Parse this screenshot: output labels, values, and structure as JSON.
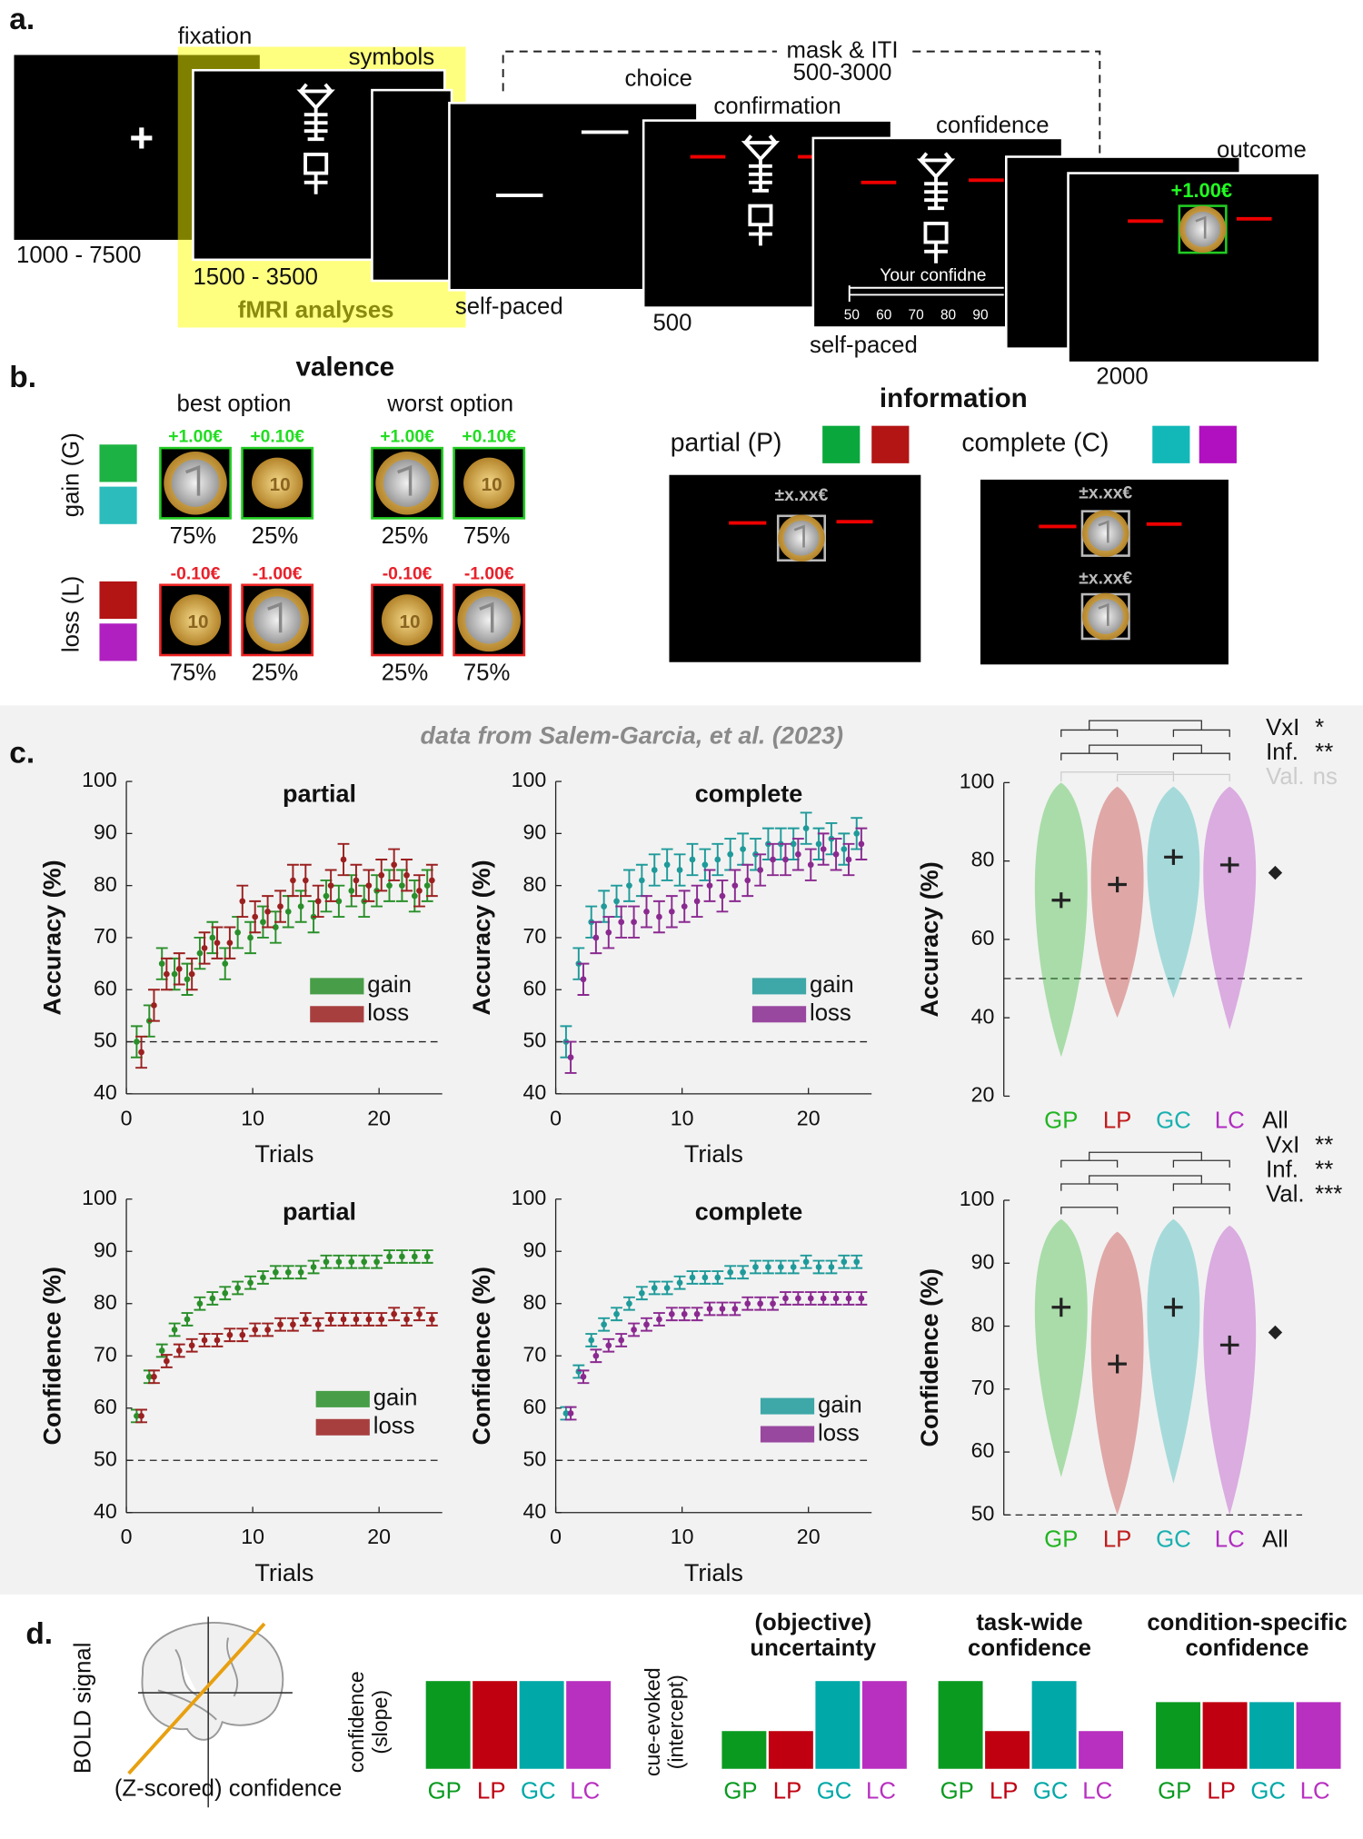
{
  "panel_a": {
    "label": "a.",
    "fixation": "fixation",
    "symbols": "symbols",
    "mask": "mask & ITI",
    "mask_time": "500-3000",
    "choice": "choice",
    "confirmation": "confirmation",
    "confidence": "confidence",
    "outcome": "outcome",
    "fixation_time": "1000 - 7500",
    "symbols_time": "1500 - 3500",
    "fmri": "fMRI analyses",
    "choice_time": "self-paced",
    "confirmation_time": "500",
    "confidence_time": "self-paced",
    "outcome_time": "2000",
    "outcome_value": "+1.00€",
    "scale_prompt": "Your confidne",
    "scale_ticks": [
      50,
      60,
      70,
      80,
      90
    ]
  },
  "panel_b": {
    "label": "b.",
    "valence": "valence",
    "best": "best option",
    "worst": "worst option",
    "gain": "gain (G)",
    "loss": "loss (L)",
    "coins": [
      {
        "label": "+1.00€",
        "prob": "75%"
      },
      {
        "label": "+0.10€",
        "prob": "25%"
      },
      {
        "label": "+1.00€",
        "prob": "25%"
      },
      {
        "label": "+0.10€",
        "prob": "75%"
      },
      {
        "label": "-0.10€",
        "prob": "75%"
      },
      {
        "label": "-1.00€",
        "prob": "25%"
      },
      {
        "label": "-0.10€",
        "prob": "25%"
      },
      {
        "label": "-1.00€",
        "prob": "75%"
      }
    ],
    "information": "information",
    "partial": "partial (P)",
    "complete": "complete (C)",
    "unknown": "±x.xx€"
  },
  "panel_c": {
    "label": "c.",
    "source": "data from Salem-Garcia, et al. (2023)"
  },
  "chart_data": [
    {
      "type": "line",
      "title": "partial",
      "xlabel": "Trials",
      "ylabel": "Accuracy (%)",
      "xlim": [
        0,
        25
      ],
      "xticks": [
        0,
        10,
        20
      ],
      "ylim": [
        40,
        100
      ],
      "yticks": [
        40,
        50,
        60,
        70,
        80,
        90,
        100
      ],
      "hline": 50,
      "x": [
        1,
        2,
        3,
        4,
        5,
        6,
        7,
        8,
        9,
        10,
        11,
        12,
        13,
        14,
        15,
        16,
        17,
        18,
        19,
        20,
        21,
        22,
        23,
        24
      ],
      "series": [
        {
          "name": "gain",
          "color": "#2a8f2a",
          "values": [
            50,
            54,
            65,
            63,
            62,
            67,
            70,
            65,
            71,
            70,
            73,
            72,
            75,
            76,
            74,
            78,
            77,
            79,
            77,
            79,
            80,
            80,
            78,
            80
          ],
          "errors": [
            3,
            3,
            3,
            3,
            3,
            3,
            3,
            3,
            3,
            3,
            3,
            3,
            3,
            3,
            3,
            3,
            3,
            3,
            3,
            3,
            3,
            3,
            3,
            3
          ]
        },
        {
          "name": "loss",
          "color": "#9b2020",
          "values": [
            48,
            57,
            63,
            64,
            63,
            68,
            69,
            69,
            77,
            74,
            75,
            76,
            81,
            81,
            77,
            80,
            85,
            81,
            80,
            82,
            84,
            82,
            79,
            81
          ],
          "errors": [
            3,
            3,
            3,
            3,
            3,
            3,
            3,
            3,
            3,
            3,
            3,
            3,
            3,
            3,
            3,
            3,
            3,
            3,
            3,
            3,
            3,
            3,
            3,
            3
          ]
        }
      ]
    },
    {
      "type": "line",
      "title": "complete",
      "xlabel": "Trials",
      "ylabel": "Accuracy (%)",
      "xlim": [
        0,
        25
      ],
      "xticks": [
        0,
        10,
        20
      ],
      "ylim": [
        40,
        100
      ],
      "yticks": [
        40,
        50,
        60,
        70,
        80,
        90,
        100
      ],
      "hline": 50,
      "x": [
        1,
        2,
        3,
        4,
        5,
        6,
        7,
        8,
        9,
        10,
        11,
        12,
        13,
        14,
        15,
        16,
        17,
        18,
        19,
        20,
        21,
        22,
        23,
        24
      ],
      "series": [
        {
          "name": "gain",
          "color": "#1f9a9a",
          "values": [
            50,
            65,
            73,
            76,
            77,
            80,
            81,
            83,
            84,
            83,
            85,
            84,
            85,
            86,
            87,
            86,
            88,
            88,
            88,
            91,
            88,
            89,
            87,
            90
          ],
          "errors": [
            3,
            3,
            3,
            3,
            3,
            3,
            3,
            3,
            3,
            3,
            3,
            3,
            3,
            3,
            3,
            3,
            3,
            3,
            3,
            3,
            3,
            3,
            3,
            3
          ]
        },
        {
          "name": "loss",
          "color": "#8a2a90",
          "values": [
            47,
            62,
            70,
            71,
            73,
            73,
            75,
            74,
            75,
            76,
            77,
            80,
            78,
            80,
            81,
            83,
            85,
            85,
            86,
            84,
            87,
            86,
            85,
            88
          ],
          "errors": [
            3,
            3,
            3,
            3,
            3,
            3,
            3,
            3,
            3,
            3,
            3,
            3,
            3,
            3,
            3,
            3,
            3,
            3,
            3,
            3,
            3,
            3,
            3,
            3
          ]
        }
      ]
    },
    {
      "type": "violin",
      "ylabel": "Accuracy (%)",
      "ylim": [
        20,
        100
      ],
      "yticks": [
        20,
        40,
        60,
        80,
        100
      ],
      "hline": 50,
      "categories": [
        "GP",
        "LP",
        "GC",
        "LC",
        "All"
      ],
      "colors": [
        "#22b422",
        "#c01c1c",
        "#1ab0b0",
        "#b02cc0",
        "#111111"
      ],
      "values": [
        70,
        74,
        81,
        79,
        77
      ],
      "errors": [
        2,
        2,
        2,
        2,
        1
      ],
      "min": [
        30,
        40,
        45,
        37,
        null
      ],
      "max": [
        100,
        99,
        99,
        99,
        null
      ],
      "tests": [
        {
          "name": "VxI",
          "result": "*"
        },
        {
          "name": "Inf.",
          "result": "**"
        },
        {
          "name": "Val.",
          "result": "ns"
        }
      ]
    },
    {
      "type": "line",
      "title": "partial",
      "xlabel": "Trials",
      "ylabel": "Confidence (%)",
      "xlim": [
        0,
        25
      ],
      "xticks": [
        0,
        10,
        20
      ],
      "ylim": [
        40,
        100
      ],
      "yticks": [
        40,
        50,
        60,
        70,
        80,
        90,
        100
      ],
      "hline": 50,
      "x": [
        1,
        2,
        3,
        4,
        5,
        6,
        7,
        8,
        9,
        10,
        11,
        12,
        13,
        14,
        15,
        16,
        17,
        18,
        19,
        20,
        21,
        22,
        23,
        24
      ],
      "series": [
        {
          "name": "gain",
          "color": "#2a8f2a",
          "values": [
            58.5,
            66,
            71,
            75,
            77,
            80,
            81,
            82,
            83,
            84,
            85,
            86,
            86,
            86,
            87,
            88,
            88,
            88,
            88,
            88,
            89,
            89,
            89,
            89
          ],
          "errors": [
            1.2,
            1.2,
            1.2,
            1.2,
            1.2,
            1.2,
            1.2,
            1.2,
            1.2,
            1.2,
            1.2,
            1.2,
            1.2,
            1.2,
            1.2,
            1.2,
            1.2,
            1.2,
            1.2,
            1.2,
            1.2,
            1.2,
            1.2,
            1.2
          ]
        },
        {
          "name": "loss",
          "color": "#9b2020",
          "values": [
            58.5,
            66,
            69,
            71,
            72,
            73,
            73,
            74,
            74,
            75,
            75,
            76,
            76,
            77,
            76,
            77,
            77,
            77,
            77,
            77,
            78,
            77,
            78,
            77
          ],
          "errors": [
            1.2,
            1.2,
            1.2,
            1.2,
            1.2,
            1.2,
            1.2,
            1.2,
            1.2,
            1.2,
            1.2,
            1.2,
            1.2,
            1.2,
            1.2,
            1.2,
            1.2,
            1.2,
            1.2,
            1.2,
            1.2,
            1.2,
            1.2,
            1.2
          ]
        }
      ]
    },
    {
      "type": "line",
      "title": "complete",
      "xlabel": "Trials",
      "ylabel": "Confidence (%)",
      "xlim": [
        0,
        25
      ],
      "xticks": [
        0,
        10,
        20
      ],
      "ylim": [
        40,
        100
      ],
      "yticks": [
        40,
        50,
        60,
        70,
        80,
        90,
        100
      ],
      "hline": 50,
      "x": [
        1,
        2,
        3,
        4,
        5,
        6,
        7,
        8,
        9,
        10,
        11,
        12,
        13,
        14,
        15,
        16,
        17,
        18,
        19,
        20,
        21,
        22,
        23,
        24
      ],
      "series": [
        {
          "name": "gain",
          "color": "#1f9a9a",
          "values": [
            59,
            67,
            73,
            76,
            78,
            80,
            82,
            83,
            83,
            84,
            85,
            85,
            85,
            86,
            86,
            87,
            87,
            87,
            87,
            88,
            87,
            87,
            88,
            88
          ],
          "errors": [
            1.2,
            1.2,
            1.2,
            1.2,
            1.2,
            1.2,
            1.2,
            1.2,
            1.2,
            1.2,
            1.2,
            1.2,
            1.2,
            1.2,
            1.2,
            1.2,
            1.2,
            1.2,
            1.2,
            1.2,
            1.2,
            1.2,
            1.2,
            1.2
          ]
        },
        {
          "name": "loss",
          "color": "#8a2a90",
          "values": [
            59,
            66,
            70,
            72,
            73,
            75,
            76,
            77,
            78,
            78,
            78,
            79,
            79,
            79,
            80,
            80,
            80,
            81,
            81,
            81,
            81,
            81,
            81,
            81
          ],
          "errors": [
            1.2,
            1.2,
            1.2,
            1.2,
            1.2,
            1.2,
            1.2,
            1.2,
            1.2,
            1.2,
            1.2,
            1.2,
            1.2,
            1.2,
            1.2,
            1.2,
            1.2,
            1.2,
            1.2,
            1.2,
            1.2,
            1.2,
            1.2,
            1.2
          ]
        }
      ]
    },
    {
      "type": "violin",
      "ylabel": "Confidence (%)",
      "ylim": [
        50,
        100
      ],
      "yticks": [
        50,
        60,
        70,
        80,
        90,
        100
      ],
      "hline": 50,
      "categories": [
        "GP",
        "LP",
        "GC",
        "LC",
        "All"
      ],
      "colors": [
        "#22b422",
        "#c01c1c",
        "#1ab0b0",
        "#b02cc0",
        "#111111"
      ],
      "values": [
        83,
        74,
        83,
        77,
        79
      ],
      "errors": [
        1.5,
        1.5,
        1.5,
        1.5,
        0.8
      ],
      "min": [
        56,
        50,
        55,
        50,
        null
      ],
      "max": [
        97,
        95,
        97,
        96,
        null
      ],
      "tests": [
        {
          "name": "VxI",
          "result": "**"
        },
        {
          "name": "Inf.",
          "result": "**"
        },
        {
          "name": "Val.",
          "result": "***"
        }
      ]
    },
    {
      "type": "bar",
      "ylabel": [
        "confidence",
        "(slope)"
      ],
      "categories": [
        "GP",
        "LP",
        "GC",
        "LC"
      ],
      "colors": [
        "#0a9a20",
        "#c00010",
        "#00a8a8",
        "#b830c0"
      ],
      "values": [
        1,
        1,
        1,
        1
      ]
    },
    {
      "type": "bar",
      "title": [
        "(objective)",
        "uncertainty"
      ],
      "ylabel": [
        "cue-evoked",
        "(intercept)"
      ],
      "categories": [
        "GP",
        "LP",
        "GC",
        "LC"
      ],
      "colors": [
        "#0a9a20",
        "#c00010",
        "#00a8a8",
        "#b830c0"
      ],
      "values": [
        0.43,
        0.43,
        1,
        1
      ]
    },
    {
      "type": "bar",
      "title": [
        "task-wide",
        "confidence"
      ],
      "categories": [
        "GP",
        "LP",
        "GC",
        "LC"
      ],
      "colors": [
        "#0a9a20",
        "#c00010",
        "#00a8a8",
        "#b830c0"
      ],
      "values": [
        1,
        0.43,
        1,
        0.43
      ]
    },
    {
      "type": "bar",
      "title": [
        "condition-specific",
        "confidence"
      ],
      "categories": [
        "GP",
        "LP",
        "GC",
        "LC"
      ],
      "colors": [
        "#0a9a20",
        "#c00010",
        "#00a8a8",
        "#b830c0"
      ],
      "values": [
        0.76,
        0.76,
        0.76,
        0.76
      ]
    }
  ],
  "panel_d": {
    "label": "d.",
    "brain_y": "BOLD signal",
    "brain_x": "(Z-scored) confidence"
  }
}
